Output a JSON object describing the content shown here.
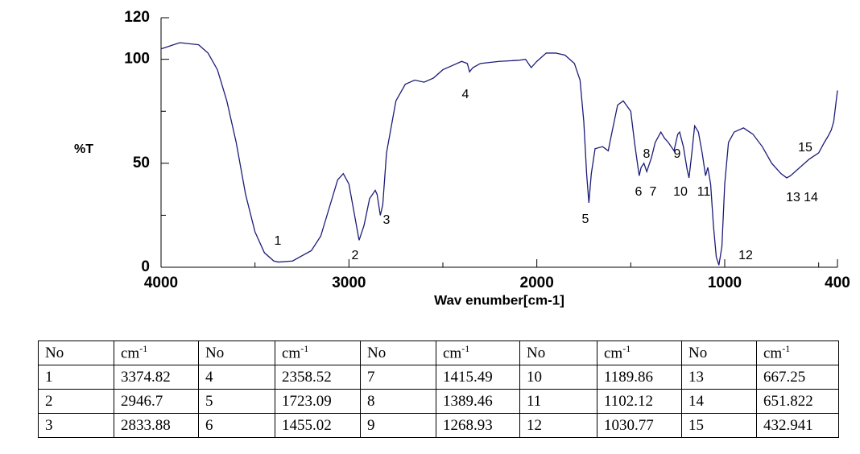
{
  "chart_data": {
    "type": "line",
    "y_label": "%T",
    "x_label": "Wav enumber[cm-1]",
    "color": "#1c1c78",
    "xlim": [
      4000,
      400
    ],
    "ylim": [
      0,
      120
    ],
    "xticks": [
      4000,
      3000,
      2000,
      1000,
      400
    ],
    "yticks": [
      0,
      50,
      100,
      120
    ],
    "xticks_minor": [
      3500,
      2500,
      1500,
      500
    ],
    "yticks_minor": [
      25,
      75
    ],
    "x": [
      4000,
      3900,
      3800,
      3750,
      3700,
      3650,
      3600,
      3550,
      3500,
      3450,
      3400,
      3374,
      3300,
      3200,
      3150,
      3100,
      3060,
      3030,
      3000,
      2970,
      2946,
      2920,
      2890,
      2860,
      2850,
      2833,
      2820,
      2800,
      2750,
      2700,
      2650,
      2600,
      2550,
      2500,
      2450,
      2400,
      2370,
      2358,
      2340,
      2300,
      2200,
      2100,
      2060,
      2030,
      2000,
      1950,
      1900,
      1850,
      1800,
      1770,
      1750,
      1735,
      1723,
      1710,
      1690,
      1650,
      1620,
      1600,
      1570,
      1540,
      1500,
      1480,
      1460,
      1455,
      1445,
      1430,
      1415,
      1400,
      1389,
      1370,
      1340,
      1320,
      1300,
      1270,
      1250,
      1240,
      1220,
      1200,
      1190,
      1175,
      1160,
      1140,
      1120,
      1102,
      1090,
      1075,
      1060,
      1045,
      1031,
      1015,
      1000,
      980,
      950,
      900,
      850,
      800,
      750,
      700,
      670,
      650,
      600,
      550,
      500,
      470,
      450,
      433,
      420,
      400
    ],
    "values": [
      105,
      108,
      107,
      103,
      95,
      80,
      60,
      35,
      17,
      7,
      3,
      2.5,
      3,
      8,
      15,
      30,
      42,
      45,
      40,
      25,
      13,
      20,
      33,
      37,
      35,
      25,
      30,
      55,
      80,
      88,
      90,
      89,
      91,
      95,
      97,
      99,
      98,
      94,
      96,
      98,
      99,
      99.5,
      100,
      96,
      99,
      103,
      103,
      102,
      98,
      90,
      70,
      45,
      31,
      45,
      57,
      58,
      56,
      65,
      78,
      80,
      75,
      60,
      47,
      44,
      48,
      50,
      46,
      50,
      53,
      60,
      65,
      62,
      60,
      56,
      64,
      65,
      58,
      47,
      43,
      55,
      68,
      65,
      55,
      44,
      48,
      40,
      20,
      5,
      1,
      10,
      40,
      60,
      65,
      67,
      64,
      58,
      50,
      45,
      43,
      44,
      48,
      52,
      55,
      60,
      63,
      66,
      70,
      85
    ],
    "annotations": [
      "1",
      "2",
      "3",
      "4",
      "5",
      "6",
      "7",
      "8",
      "9",
      "10",
      "11",
      "12",
      "13",
      "14",
      "15"
    ]
  },
  "table": {
    "header": [
      "No",
      {
        "unit": "cm",
        "exp": "-1"
      },
      "No",
      {
        "unit": "cm",
        "exp": "-1"
      },
      "No",
      {
        "unit": "cm",
        "exp": "-1"
      },
      "No",
      {
        "unit": "cm",
        "exp": "-1"
      },
      "No",
      {
        "unit": "cm",
        "exp": "-1"
      }
    ],
    "rows": [
      [
        1,
        3374.82,
        4,
        2358.52,
        7,
        1415.49,
        10,
        1189.86,
        13,
        667.25
      ],
      [
        2,
        2946.7,
        5,
        1723.09,
        8,
        1389.46,
        11,
        1102.12,
        14,
        651.822
      ],
      [
        3,
        2833.88,
        6,
        1455.02,
        9,
        1268.93,
        12,
        1030.77,
        15,
        432.941
      ]
    ]
  }
}
